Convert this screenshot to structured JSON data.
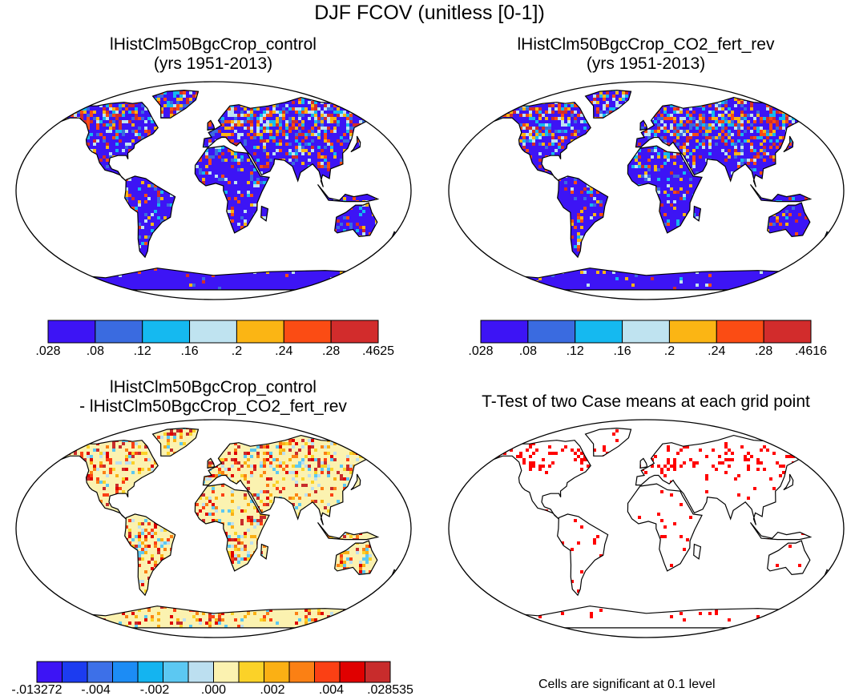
{
  "title": "DJF FCOV (unitless [0-1])",
  "panels": {
    "control": {
      "title": "lHistClm50BgcCrop_control",
      "subtitle": "(yrs 1951-2013)"
    },
    "co2": {
      "title": "lHistClm50BgcCrop_CO2_fert_rev",
      "subtitle": "(yrs 1951-2013)"
    },
    "diff": {
      "title": "lHistClm50BgcCrop_control",
      "subtitle": "- lHistClm50BgcCrop_CO2_fert_rev"
    },
    "ttest": {
      "title": "T-Test of two Case means at each grid point",
      "note": "Cells are significant at 0.1 level"
    }
  },
  "colorbars": {
    "control": {
      "colors": [
        "#3d14f5",
        "#3a6be0",
        "#15b9f0",
        "#bfe3f0",
        "#fbb514",
        "#fb4c14",
        "#d22c2c"
      ],
      "labels": [
        ".028",
        ".08",
        ".12",
        ".16",
        ".2",
        ".24",
        ".28",
        ".4625"
      ]
    },
    "co2": {
      "colors": [
        "#3d14f5",
        "#3a6be0",
        "#15b9f0",
        "#bfe3f0",
        "#fbb514",
        "#fb4c14",
        "#d22c2c"
      ],
      "labels": [
        ".028",
        ".08",
        ".12",
        ".16",
        ".2",
        ".24",
        ".28",
        ".4616"
      ]
    },
    "diff": {
      "colors": [
        "#3d14f5",
        "#1c3cf0",
        "#3d70e8",
        "#1c8cf5",
        "#14b4f0",
        "#5cc8f2",
        "#bcdff0",
        "#fbf2b0",
        "#fbd228",
        "#fbb014",
        "#fb8014",
        "#fb4014",
        "#e00000",
        "#c82c2c"
      ],
      "labels": [
        "-.013272",
        "-.004",
        "-.002",
        ".000",
        ".002",
        ".004",
        ".028535"
      ]
    }
  },
  "map_colors": {
    "control_base": "#3d14f5",
    "diff_base": "#fbf2b0",
    "ttest_cells": "#ff0000"
  }
}
